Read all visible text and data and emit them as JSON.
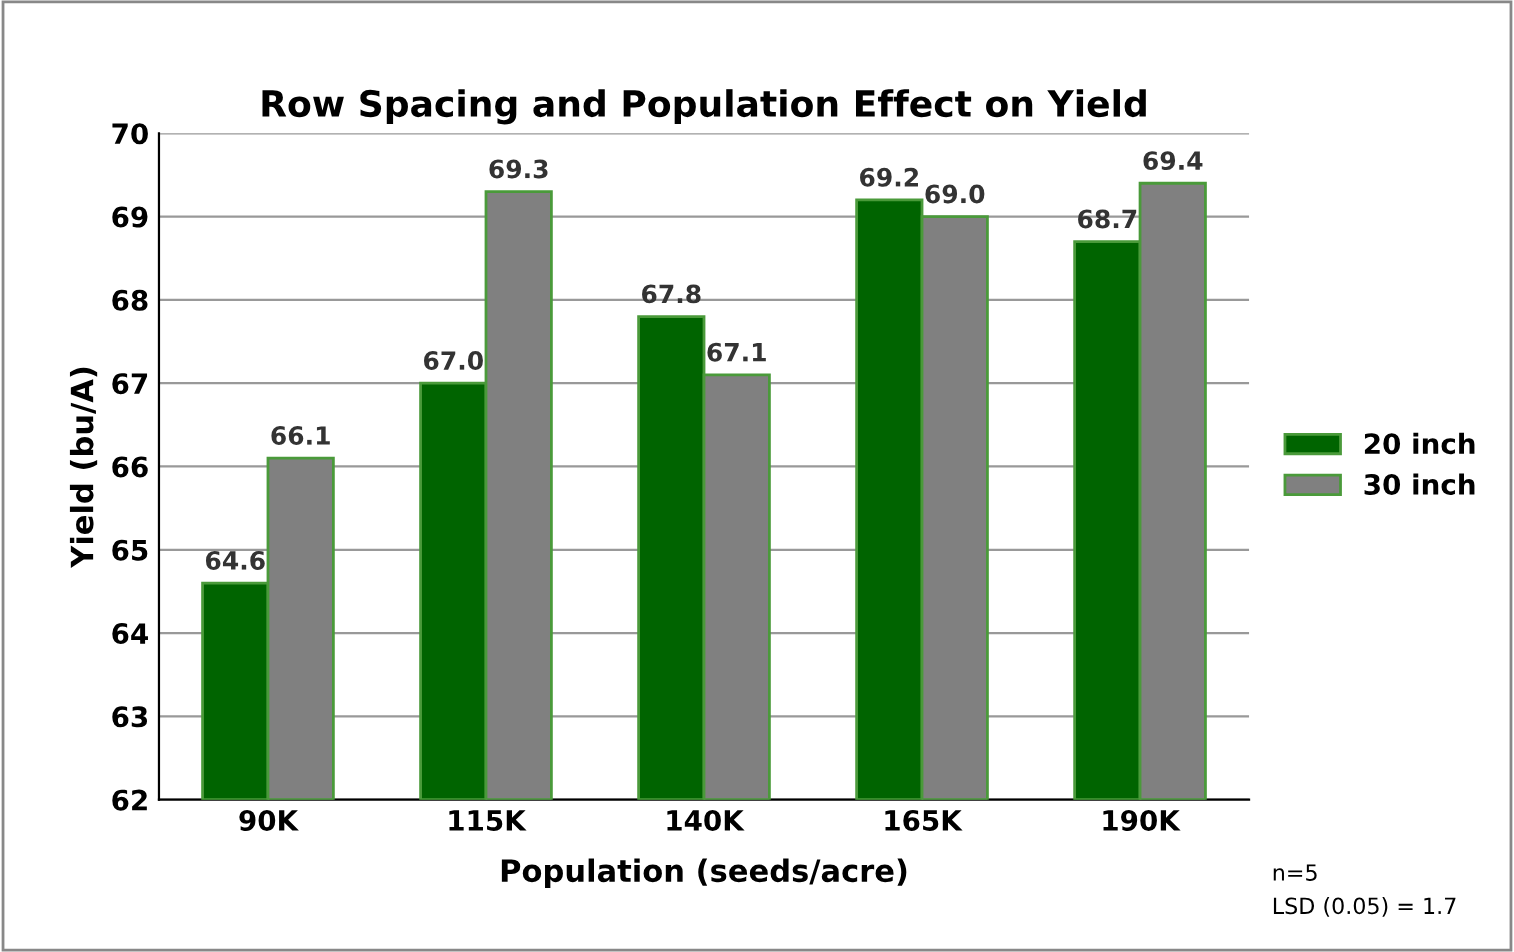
{
  "chart_data": {
    "type": "bar",
    "title": "Row Spacing and Population Effect on Yield",
    "xlabel": "Population (seeds/acre)",
    "ylabel": "Yield (bu/A)",
    "categories": [
      "90K",
      "115K",
      "140K",
      "165K",
      "190K"
    ],
    "series": [
      {
        "name": "20 inch",
        "color": "#006400",
        "values": [
          64.6,
          67.0,
          67.8,
          69.2,
          68.7
        ],
        "value_labels": [
          "64.6",
          "67.0",
          "67.8",
          "69.2",
          "68.7"
        ]
      },
      {
        "name": "30 inch",
        "color": "#808080",
        "values": [
          66.1,
          69.3,
          67.1,
          69.0,
          69.4
        ],
        "value_labels": [
          "66.1",
          "69.3",
          "67.1",
          "69.0",
          "69.4"
        ]
      }
    ],
    "ylim": [
      62,
      70
    ],
    "yticks": [
      62,
      63,
      64,
      65,
      66,
      67,
      68,
      69,
      70
    ],
    "grid": "y",
    "legend": "right",
    "annotations": [
      "n=5",
      "LSD (0.05) = 1.7"
    ]
  }
}
